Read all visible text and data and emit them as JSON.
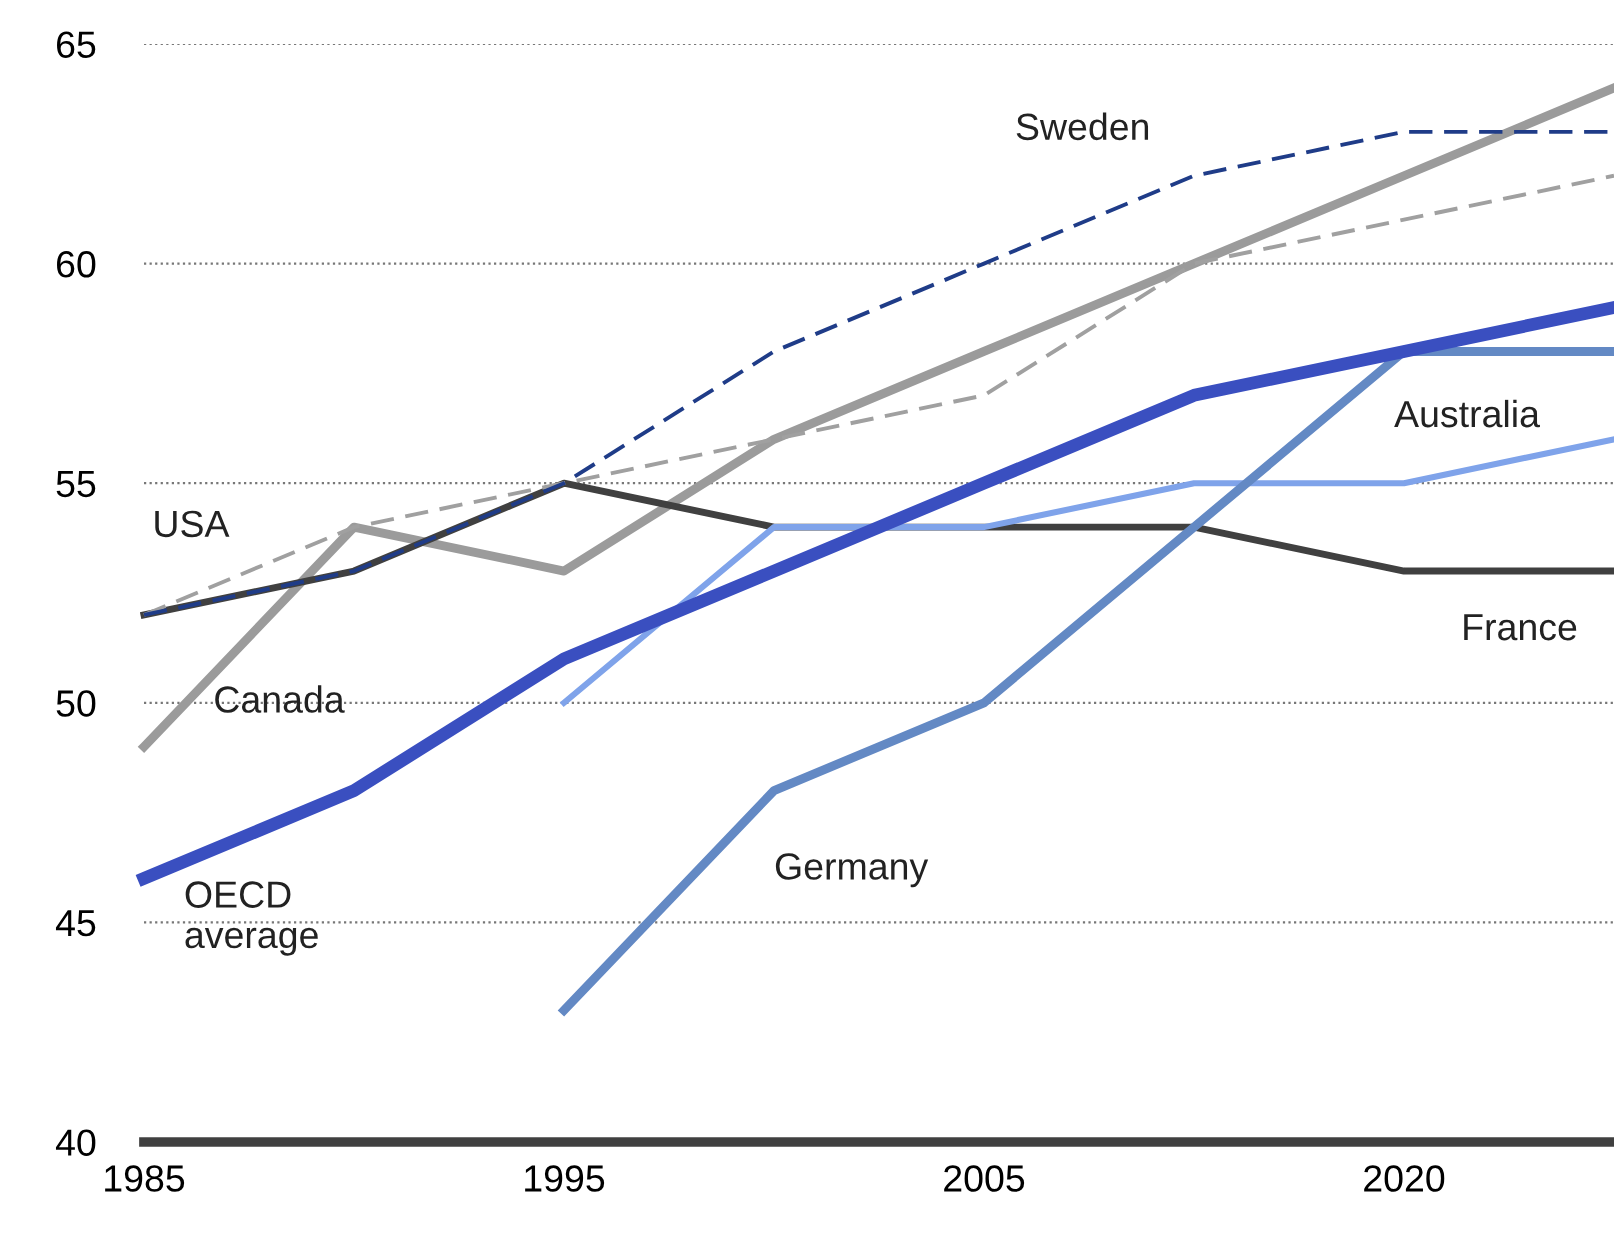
{
  "chart_data": {
    "type": "line",
    "categories": [
      "1985",
      null,
      "1995",
      null,
      "2005",
      null,
      "2020",
      null
    ],
    "ylim": [
      40,
      65
    ],
    "yticks": [
      40,
      45,
      50,
      55,
      60,
      65
    ],
    "grid": "y",
    "legend": false,
    "marker": "none",
    "series": [
      {
        "name": "France",
        "color": "#404040",
        "line_style": "solid",
        "values": [
          52,
          53,
          55,
          54,
          54,
          54,
          53,
          53
        ]
      },
      {
        "name": "Sweden",
        "color": "#1f3c88",
        "line_style": "dashed",
        "values": [
          52,
          53,
          55,
          58,
          60,
          62,
          63,
          63
        ]
      },
      {
        "name": "USA",
        "color": "#a0a0a0",
        "line_style": "dashed",
        "values": [
          52,
          54,
          55,
          56,
          57,
          60,
          61,
          62
        ]
      },
      {
        "name": "Canada",
        "color": "#9b9b9b",
        "line_style": "solid",
        "values": [
          49,
          54,
          53,
          56,
          58,
          60,
          62,
          64
        ]
      },
      {
        "name": "Australia",
        "color": "#7fa3ea",
        "line_style": "solid",
        "values": [
          null,
          null,
          50,
          54,
          54,
          55,
          55,
          56
        ]
      },
      {
        "name": "Germany",
        "color": "#6389c4",
        "line_style": "solid",
        "values": [
          null,
          null,
          43,
          48,
          50,
          54,
          58,
          58
        ]
      },
      {
        "name": "OECD\naverage",
        "color": "#3a4fc0",
        "line_style": "solid",
        "values": [
          46,
          48,
          51,
          53,
          55,
          57,
          58,
          59
        ]
      }
    ]
  }
}
